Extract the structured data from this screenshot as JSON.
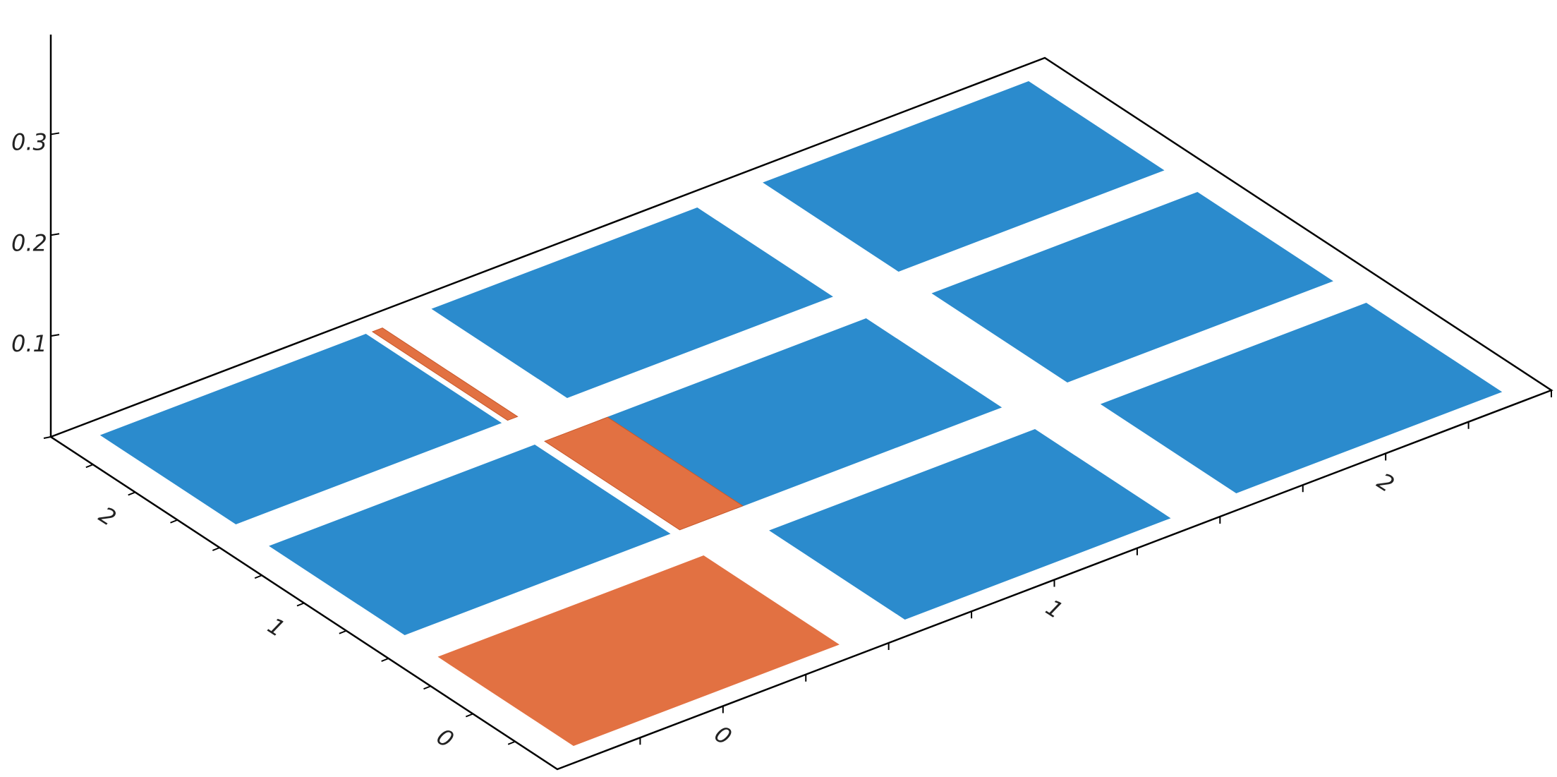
{
  "chart_data": {
    "type": "bar3d",
    "title": "",
    "xlabel": "",
    "ylabel": "",
    "zlabel": "",
    "x_ticks": [
      "0",
      "1",
      "2"
    ],
    "y_ticks": [
      "0",
      "1",
      "2"
    ],
    "z_ticks": [
      "0.1",
      "0.2",
      "0.3"
    ],
    "zlim": [
      0,
      0.35
    ],
    "xlim": [
      -0.5,
      2.5
    ],
    "ylim": [
      -0.5,
      2.5
    ],
    "colors": {
      "blue": "#2b8bcd",
      "orange": "#e27142",
      "axis": "#000000"
    },
    "bars": [
      {
        "x": 0,
        "y": 0,
        "layers": [
          {
            "value": 0.0,
            "color": "orange"
          }
        ]
      },
      {
        "x": 0,
        "y": 1,
        "layers": [
          {
            "value": 0.0,
            "color": "blue"
          }
        ]
      },
      {
        "x": 0,
        "y": 2,
        "layers": [
          {
            "value": 0.0,
            "color": "blue"
          }
        ]
      },
      {
        "x": 1,
        "y": 0,
        "layers": [
          {
            "value": 0.0,
            "color": "blue"
          }
        ]
      },
      {
        "x": 1,
        "y": 1,
        "layers": [
          {
            "value": 0.0,
            "color": "blue"
          }
        ]
      },
      {
        "x": 1,
        "y": 2,
        "layers": [
          {
            "value": 0.0,
            "color": "blue"
          }
        ]
      },
      {
        "x": 2,
        "y": 0,
        "layers": [
          {
            "value": 0.0,
            "color": "blue"
          }
        ]
      },
      {
        "x": 2,
        "y": 1,
        "layers": [
          {
            "value": 0.0,
            "color": "blue"
          }
        ]
      },
      {
        "x": 2,
        "y": 2,
        "layers": [
          {
            "value": 0.0,
            "color": "blue"
          }
        ]
      }
    ],
    "orange_strips": [
      {
        "x": 1,
        "y_from": 0.43,
        "y_to": 0.62
      },
      {
        "x": 2,
        "y_from": 0.42,
        "y_to": 0.45
      }
    ],
    "grid": false,
    "legend": "none"
  }
}
